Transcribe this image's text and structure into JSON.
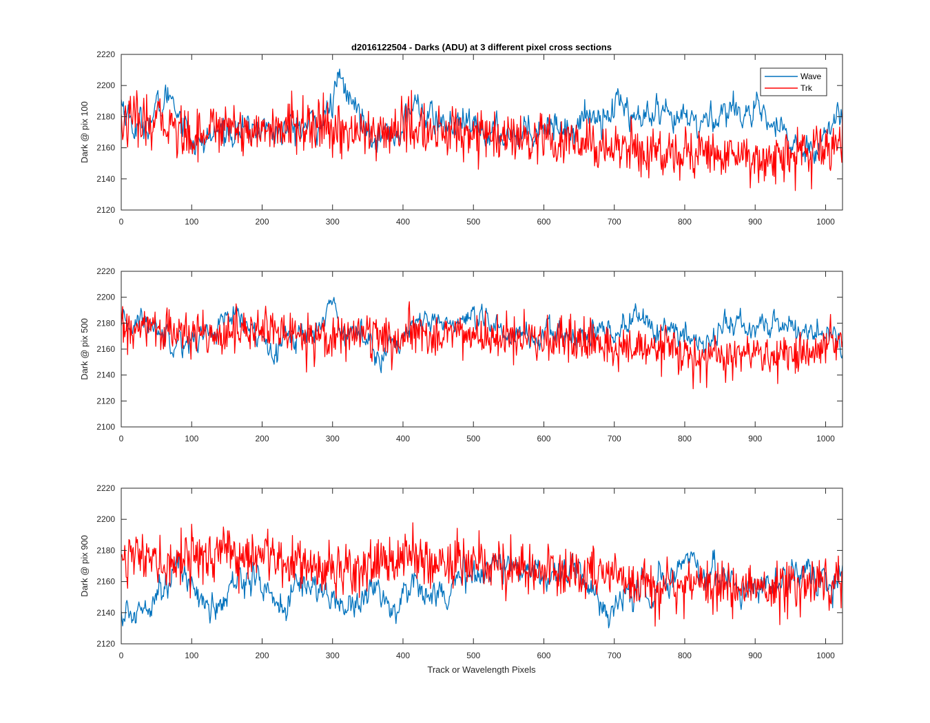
{
  "chart_data": [
    {
      "type": "line",
      "title": "d2016122504 - Darks (ADU) at 3 different pixel cross sections",
      "xlabel": "",
      "ylabel": "Dark @ pix 100",
      "xlim": [
        0,
        1024
      ],
      "ylim": [
        2120,
        2220
      ],
      "xticks": [
        0,
        100,
        200,
        300,
        400,
        500,
        600,
        700,
        800,
        900,
        1000
      ],
      "yticks": [
        2120,
        2140,
        2160,
        2180,
        2200,
        2220
      ],
      "grid": false,
      "legend": {
        "placement": "top-right",
        "entries": [
          "Wave",
          "Trk"
        ]
      },
      "series": [
        {
          "name": "Wave",
          "color": "#0072BD",
          "x": [
            0,
            20,
            40,
            60,
            70,
            80,
            100,
            110,
            120,
            140,
            160,
            180,
            200,
            220,
            240,
            260,
            280,
            290,
            300,
            310,
            320,
            340,
            360,
            380,
            400,
            410,
            420,
            440,
            460,
            480,
            500,
            520,
            540,
            560,
            580,
            600,
            620,
            640,
            660,
            680,
            700,
            710,
            720,
            740,
            760,
            780,
            800,
            820,
            840,
            860,
            880,
            900,
            920,
            940,
            960,
            980,
            1000,
            1010,
            1024
          ],
          "values": [
            2190,
            2172,
            2178,
            2188,
            2196,
            2185,
            2168,
            2160,
            2165,
            2170,
            2172,
            2170,
            2174,
            2170,
            2172,
            2173,
            2176,
            2180,
            2188,
            2205,
            2195,
            2180,
            2170,
            2168,
            2172,
            2185,
            2188,
            2178,
            2175,
            2174,
            2172,
            2170,
            2168,
            2170,
            2172,
            2176,
            2174,
            2172,
            2180,
            2182,
            2185,
            2192,
            2182,
            2178,
            2180,
            2176,
            2178,
            2175,
            2180,
            2184,
            2186,
            2180,
            2176,
            2168,
            2160,
            2162,
            2168,
            2175,
            2182
          ]
        },
        {
          "name": "Trk",
          "color": "#FF0000",
          "x": [
            0,
            20,
            40,
            60,
            80,
            100,
            120,
            140,
            160,
            180,
            200,
            220,
            240,
            260,
            280,
            300,
            320,
            340,
            360,
            380,
            400,
            420,
            440,
            460,
            480,
            500,
            520,
            540,
            560,
            580,
            600,
            620,
            640,
            660,
            680,
            700,
            720,
            740,
            760,
            780,
            800,
            820,
            840,
            860,
            880,
            900,
            920,
            940,
            960,
            980,
            1000,
            1024
          ],
          "values": [
            2175,
            2178,
            2172,
            2180,
            2170,
            2168,
            2172,
            2174,
            2176,
            2170,
            2172,
            2170,
            2174,
            2176,
            2172,
            2170,
            2172,
            2170,
            2168,
            2170,
            2174,
            2172,
            2170,
            2168,
            2172,
            2170,
            2168,
            2164,
            2166,
            2162,
            2164,
            2160,
            2164,
            2162,
            2158,
            2162,
            2160,
            2158,
            2156,
            2158,
            2156,
            2158,
            2154,
            2156,
            2158,
            2152,
            2154,
            2156,
            2154,
            2156,
            2160,
            2162
          ]
        }
      ]
    },
    {
      "type": "line",
      "title": "",
      "xlabel": "",
      "ylabel": "Dark @ pix 500",
      "xlim": [
        0,
        1024
      ],
      "ylim": [
        2100,
        2220
      ],
      "xticks": [
        0,
        100,
        200,
        300,
        400,
        500,
        600,
        700,
        800,
        900,
        1000
      ],
      "yticks": [
        2100,
        2120,
        2140,
        2160,
        2180,
        2200,
        2220
      ],
      "grid": false,
      "series": [
        {
          "color": "#0072BD",
          "x": [
            0,
            20,
            40,
            60,
            80,
            100,
            120,
            140,
            160,
            180,
            200,
            220,
            240,
            260,
            280,
            290,
            300,
            310,
            320,
            340,
            360,
            370,
            380,
            400,
            420,
            440,
            460,
            480,
            500,
            520,
            540,
            560,
            580,
            600,
            620,
            640,
            660,
            680,
            700,
            720,
            730,
            740,
            760,
            780,
            800,
            820,
            840,
            860,
            880,
            900,
            920,
            940,
            960,
            980,
            1000,
            1024
          ],
          "values": [
            2175,
            2182,
            2180,
            2174,
            2168,
            2165,
            2172,
            2178,
            2185,
            2176,
            2168,
            2165,
            2170,
            2172,
            2175,
            2192,
            2195,
            2180,
            2175,
            2170,
            2165,
            2155,
            2160,
            2172,
            2176,
            2180,
            2182,
            2178,
            2180,
            2178,
            2174,
            2172,
            2170,
            2168,
            2172,
            2170,
            2168,
            2170,
            2175,
            2180,
            2188,
            2182,
            2176,
            2172,
            2168,
            2166,
            2170,
            2180,
            2178,
            2175,
            2178,
            2180,
            2176,
            2172,
            2174,
            2162
          ]
        },
        {
          "color": "#FF0000",
          "x": [
            0,
            20,
            40,
            60,
            80,
            100,
            120,
            140,
            160,
            180,
            200,
            220,
            240,
            260,
            280,
            300,
            320,
            340,
            360,
            380,
            400,
            420,
            440,
            460,
            480,
            500,
            520,
            540,
            560,
            580,
            600,
            620,
            640,
            660,
            680,
            700,
            720,
            740,
            760,
            780,
            800,
            820,
            840,
            860,
            880,
            900,
            920,
            940,
            960,
            980,
            1000,
            1024
          ],
          "values": [
            2176,
            2172,
            2178,
            2174,
            2172,
            2170,
            2174,
            2172,
            2176,
            2170,
            2178,
            2172,
            2174,
            2170,
            2172,
            2168,
            2172,
            2174,
            2170,
            2165,
            2168,
            2172,
            2170,
            2174,
            2172,
            2170,
            2168,
            2170,
            2166,
            2168,
            2166,
            2164,
            2166,
            2162,
            2164,
            2160,
            2162,
            2160,
            2158,
            2162,
            2156,
            2150,
            2156,
            2152,
            2154,
            2156,
            2152,
            2158,
            2154,
            2156,
            2160,
            2168
          ]
        }
      ]
    },
    {
      "type": "line",
      "title": "",
      "xlabel": "Track or Wavelength Pixels",
      "ylabel": "Dark @ pix 900",
      "xlim": [
        0,
        1024
      ],
      "ylim": [
        2120,
        2220
      ],
      "xticks": [
        0,
        100,
        200,
        300,
        400,
        500,
        600,
        700,
        800,
        900,
        1000
      ],
      "yticks": [
        2120,
        2140,
        2160,
        2180,
        2200,
        2220
      ],
      "grid": false,
      "series": [
        {
          "color": "#0072BD",
          "x": [
            0,
            10,
            20,
            40,
            60,
            80,
            100,
            120,
            140,
            160,
            180,
            200,
            220,
            230,
            240,
            260,
            280,
            300,
            320,
            340,
            360,
            380,
            390,
            400,
            420,
            440,
            460,
            480,
            500,
            520,
            540,
            560,
            580,
            600,
            620,
            640,
            660,
            680,
            690,
            700,
            720,
            740,
            760,
            780,
            800,
            810,
            820,
            840,
            860,
            880,
            900,
            920,
            940,
            960,
            980,
            1000,
            1024
          ],
          "values": [
            2140,
            2136,
            2140,
            2150,
            2158,
            2168,
            2160,
            2145,
            2142,
            2158,
            2166,
            2158,
            2148,
            2140,
            2150,
            2160,
            2156,
            2148,
            2145,
            2150,
            2156,
            2145,
            2142,
            2150,
            2160,
            2156,
            2150,
            2160,
            2164,
            2170,
            2172,
            2168,
            2170,
            2166,
            2164,
            2168,
            2160,
            2148,
            2138,
            2145,
            2150,
            2155,
            2158,
            2162,
            2172,
            2178,
            2168,
            2165,
            2160,
            2158,
            2156,
            2160,
            2162,
            2164,
            2160,
            2158,
            2160
          ]
        },
        {
          "color": "#FF0000",
          "x": [
            0,
            20,
            40,
            60,
            80,
            100,
            120,
            140,
            160,
            180,
            200,
            220,
            240,
            260,
            280,
            300,
            320,
            340,
            360,
            380,
            400,
            420,
            440,
            460,
            480,
            500,
            520,
            540,
            560,
            580,
            600,
            620,
            640,
            660,
            680,
            700,
            720,
            740,
            760,
            780,
            800,
            820,
            840,
            860,
            880,
            900,
            920,
            940,
            960,
            980,
            1000,
            1024
          ],
          "values": [
            2180,
            2176,
            2172,
            2170,
            2174,
            2178,
            2174,
            2180,
            2176,
            2178,
            2174,
            2176,
            2172,
            2174,
            2170,
            2166,
            2170,
            2168,
            2174,
            2172,
            2176,
            2174,
            2170,
            2172,
            2174,
            2176,
            2172,
            2170,
            2168,
            2166,
            2168,
            2166,
            2164,
            2166,
            2162,
            2164,
            2160,
            2162,
            2158,
            2160,
            2158,
            2160,
            2156,
            2158,
            2156,
            2158,
            2154,
            2156,
            2158,
            2160,
            2162,
            2164
          ]
        }
      ]
    }
  ]
}
